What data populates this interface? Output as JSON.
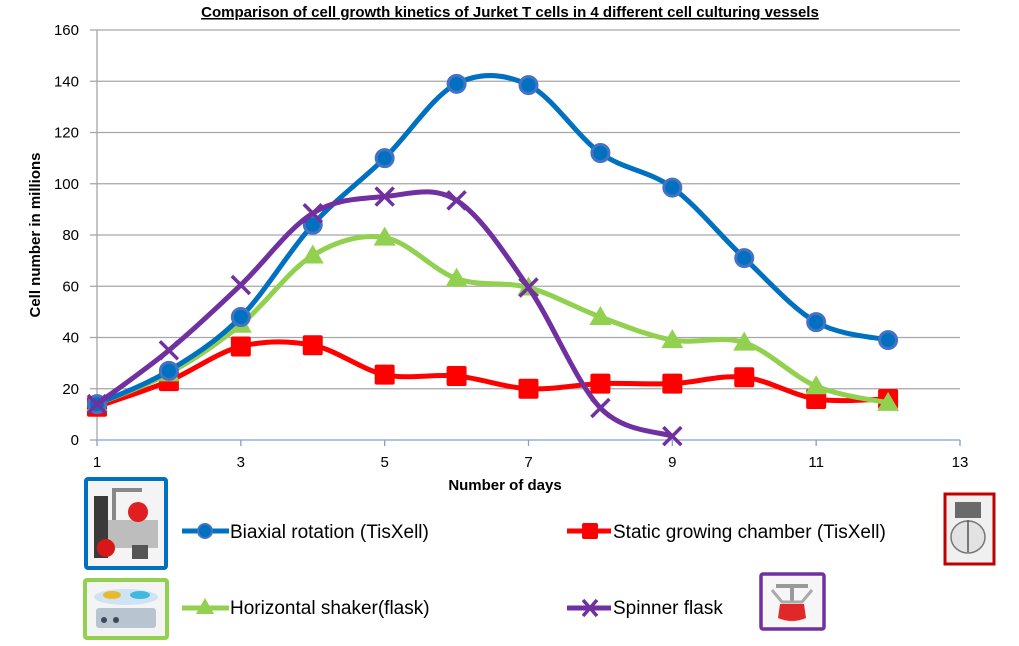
{
  "chart_data": {
    "type": "line",
    "title": "Comparison of cell growth kinetics of Jurket T cells in 4 different cell culturing vessels",
    "xlabel": "Number of days",
    "ylabel": "Cell number in millions",
    "xlim": [
      1,
      13
    ],
    "ylim": [
      0,
      160
    ],
    "xticks": [
      1,
      3,
      5,
      7,
      9,
      11,
      13
    ],
    "yticks": [
      0,
      20,
      40,
      60,
      80,
      100,
      120,
      140,
      160
    ],
    "grid": "horizontal",
    "smooth": true,
    "legend_position": "bottom",
    "series": [
      {
        "name": "Biaxial rotation (TisXell)",
        "color": "#0070C0",
        "marker": "circle",
        "marker_color": "#4472C4",
        "x": [
          1,
          2,
          3,
          4,
          5,
          6,
          7,
          8,
          9,
          10,
          11,
          12
        ],
        "values": [
          14,
          27,
          48,
          84,
          110,
          139,
          138.5,
          112,
          98.5,
          71,
          46,
          39
        ],
        "legend_frame_color": "#0070C0"
      },
      {
        "name": "Static growing chamber (TisXell)",
        "color": "#FF0000",
        "marker": "square",
        "marker_color": "#FF0000",
        "x": [
          1,
          2,
          3,
          4,
          5,
          6,
          7,
          8,
          9,
          10,
          11,
          12
        ],
        "values": [
          13,
          23,
          36.5,
          37,
          25.5,
          25,
          20,
          22,
          22,
          24.5,
          16,
          16
        ],
        "legend_frame_color": "#C00000"
      },
      {
        "name": "Horizontal shaker(flask)",
        "color": "#92D050",
        "marker": "triangle",
        "marker_color": "#92D050",
        "x": [
          1,
          2,
          3,
          4,
          5,
          6,
          7,
          8,
          9,
          10,
          11,
          12
        ],
        "values": [
          14,
          26,
          45,
          72,
          79,
          63,
          59.5,
          48,
          39,
          38,
          21,
          14.5
        ],
        "legend_frame_color": "#92D050"
      },
      {
        "name": "Spinner flask",
        "color": "#7030A0",
        "marker": "x",
        "marker_color": "#7030A0",
        "x": [
          1,
          2,
          3,
          4,
          5,
          6,
          7,
          8,
          9
        ],
        "values": [
          14,
          35,
          60.5,
          88.5,
          95,
          93.5,
          59.5,
          12.5,
          1.5
        ],
        "legend_frame_color": "#7030A0"
      }
    ]
  },
  "legend": {
    "items": [
      {
        "label": "Biaxial rotation (TisXell)",
        "picture": "biaxial-rotation-bioreactor-photo"
      },
      {
        "label": "Static growing chamber (TisXell)",
        "picture": "static-chamber-photo"
      },
      {
        "label": "Horizontal shaker(flask)",
        "picture": "horizontal-shaker-photo"
      },
      {
        "label": "Spinner flask",
        "picture": "spinner-flask-photo"
      }
    ]
  }
}
